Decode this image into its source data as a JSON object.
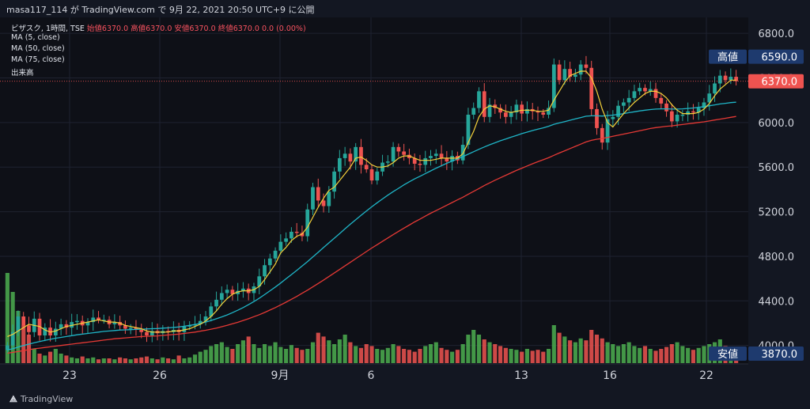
{
  "header": {
    "caption": "masa117_114 が TradingView.com で 9月 22, 2021 20:50 UTC+9 に公開"
  },
  "legend": {
    "symbol": "ビザスク, 1時間, TSE",
    "ohlc": "始値6370.0 高値6370.0 安値6370.0 終値6370.0 0.0 (0.00%)",
    "ma5": "MA (5, close)",
    "ma50": "MA (50, close)",
    "ma75": "MA (75, close)",
    "volume": "出来高"
  },
  "price_axis": {
    "ticks": [
      "6800.0",
      "6400.0",
      "6000.0",
      "5600.0",
      "5200.0",
      "4800.0",
      "4400.0",
      "4000.0"
    ],
    "high_label": "高値",
    "high_value": "6590.0",
    "last_value": "6370.0",
    "low_label": "安値",
    "low_value": "3870.0"
  },
  "time_axis": {
    "labels": [
      "23",
      "26",
      "9月",
      "6",
      "13",
      "16",
      "22"
    ]
  },
  "footer": {
    "brand": "TradingView"
  },
  "colors": {
    "up": "#26a69a",
    "down": "#ef5350",
    "ma5": "#f5d13a",
    "ma50": "#1fb5c7",
    "ma75": "#e53935",
    "vol_up": "#4caf50",
    "vol_down": "#ef5350",
    "bg": "#0e1017"
  },
  "chart_data": {
    "type": "candlestick",
    "ylim": [
      3870,
      6900
    ],
    "ticks": [
      6800,
      6400,
      6000,
      5600,
      5200,
      4800,
      4400,
      4000
    ],
    "close": [
      4000,
      4120,
      4260,
      4180,
      4120,
      4240,
      4090,
      4160,
      4090,
      4150,
      4190,
      4160,
      4210,
      4220,
      4180,
      4210,
      4250,
      4230,
      4230,
      4190,
      4210,
      4180,
      4150,
      4160,
      4140,
      4120,
      4090,
      4130,
      4110,
      4130,
      4120,
      4140,
      4120,
      4170,
      4180,
      4190,
      4220,
      4260,
      4350,
      4410,
      4470,
      4500,
      4460,
      4490,
      4510,
      4470,
      4530,
      4620,
      4720,
      4780,
      4850,
      4930,
      4960,
      5020,
      5010,
      4980,
      5220,
      5420,
      5300,
      5250,
      5380,
      5560,
      5680,
      5720,
      5650,
      5780,
      5620,
      5580,
      5480,
      5560,
      5640,
      5650,
      5780,
      5740,
      5710,
      5680,
      5630,
      5620,
      5680,
      5700,
      5720,
      5680,
      5650,
      5700,
      5660,
      5800,
      6070,
      6130,
      6280,
      6050,
      6160,
      6130,
      6090,
      6050,
      6090,
      6160,
      6080,
      6120,
      6100,
      6090,
      6070,
      6130,
      6520,
      6380,
      6480,
      6410,
      6430,
      6520,
      6490,
      6120,
      5950,
      5820,
      6030,
      6050,
      6150,
      6180,
      6220,
      6280,
      6310,
      6280,
      6300,
      6220,
      6170,
      6100,
      6010,
      6070,
      6070,
      6100,
      6090,
      6130,
      6180,
      6260,
      6350,
      6420,
      6380,
      6410,
      6370
    ],
    "ma5": [
      4080,
      4100,
      4130,
      4160,
      4190,
      4180,
      4170,
      4140,
      4120,
      4130,
      4150,
      4170,
      4180,
      4190,
      4200,
      4210,
      4220,
      4230,
      4220,
      4210,
      4210,
      4200,
      4180,
      4170,
      4160,
      4150,
      4130,
      4120,
      4120,
      4120,
      4120,
      4130,
      4130,
      4140,
      4150,
      4170,
      4190,
      4220,
      4260,
      4310,
      4370,
      4420,
      4460,
      4480,
      4490,
      4490,
      4500,
      4530,
      4590,
      4660,
      4730,
      4830,
      4880,
      4940,
      4980,
      5000,
      5060,
      5150,
      5240,
      5320,
      5390,
      5420,
      5480,
      5540,
      5600,
      5680,
      5690,
      5660,
      5620,
      5600,
      5600,
      5610,
      5640,
      5680,
      5700,
      5700,
      5680,
      5660,
      5660,
      5660,
      5670,
      5680,
      5680,
      5680,
      5680,
      5720,
      5820,
      5920,
      6050,
      6120,
      6150,
      6140,
      6120,
      6100,
      6090,
      6100,
      6110,
      6110,
      6110,
      6100,
      6100,
      6110,
      6200,
      6280,
      6360,
      6420,
      6440,
      6460,
      6460,
      6400,
      6280,
      6120,
      6000,
      5960,
      6020,
      6080,
      6130,
      6180,
      6220,
      6260,
      6280,
      6280,
      6260,
      6220,
      6160,
      6110,
      6080,
      6080,
      6080,
      6090,
      6120,
      6170,
      6240,
      6300,
      6340,
      6380,
      6380
    ],
    "ma50": [
      3960,
      3970,
      3985,
      4000,
      4012,
      4025,
      4035,
      4045,
      4055,
      4065,
      4072,
      4080,
      4088,
      4096,
      4102,
      4108,
      4114,
      4120,
      4126,
      4130,
      4134,
      4138,
      4140,
      4142,
      4144,
      4146,
      4148,
      4150,
      4152,
      4155,
      4158,
      4162,
      4166,
      4172,
      4180,
      4188,
      4198,
      4210,
      4224,
      4240,
      4256,
      4274,
      4294,
      4316,
      4340,
      4366,
      4394,
      4424,
      4456,
      4490,
      4524,
      4560,
      4598,
      4636,
      4674,
      4712,
      4752,
      4794,
      4836,
      4878,
      4920,
      4962,
      5004,
      5046,
      5088,
      5128,
      5168,
      5206,
      5244,
      5280,
      5314,
      5348,
      5380,
      5410,
      5440,
      5468,
      5494,
      5518,
      5542,
      5566,
      5590,
      5612,
      5634,
      5654,
      5674,
      5694,
      5716,
      5738,
      5760,
      5780,
      5800,
      5818,
      5836,
      5852,
      5868,
      5884,
      5900,
      5914,
      5928,
      5940,
      5952,
      5966,
      5984,
      5996,
      6008,
      6020,
      6032,
      6044,
      6056,
      6060,
      6060,
      6058,
      6062,
      6066,
      6072,
      6080,
      6088,
      6096,
      6104,
      6110,
      6116,
      6120,
      6122,
      6122,
      6120,
      6120,
      6122,
      6126,
      6130,
      6136,
      6142,
      6150,
      6158,
      6166,
      6172,
      6178,
      6182
    ],
    "ma75": [
      3930,
      3938,
      3946,
      3954,
      3962,
      3970,
      3976,
      3982,
      3988,
      3994,
      4000,
      4006,
      4012,
      4018,
      4024,
      4030,
      4036,
      4042,
      4048,
      4054,
      4060,
      4064,
      4068,
      4072,
      4076,
      4080,
      4082,
      4084,
      4086,
      4090,
      4094,
      4098,
      4102,
      4108,
      4114,
      4120,
      4128,
      4136,
      4146,
      4156,
      4168,
      4180,
      4194,
      4208,
      4224,
      4240,
      4258,
      4276,
      4296,
      4318,
      4340,
      4364,
      4388,
      4414,
      4440,
      4468,
      4496,
      4526,
      4556,
      4586,
      4618,
      4650,
      4682,
      4714,
      4746,
      4778,
      4810,
      4842,
      4874,
      4904,
      4934,
      4964,
      4994,
      5024,
      5052,
      5080,
      5108,
      5134,
      5160,
      5186,
      5210,
      5234,
      5258,
      5282,
      5306,
      5330,
      5356,
      5382,
      5408,
      5434,
      5458,
      5482,
      5504,
      5526,
      5548,
      5570,
      5590,
      5610,
      5630,
      5648,
      5666,
      5684,
      5706,
      5726,
      5746,
      5766,
      5786,
      5806,
      5826,
      5840,
      5850,
      5856,
      5866,
      5876,
      5886,
      5896,
      5906,
      5916,
      5926,
      5936,
      5946,
      5954,
      5960,
      5966,
      5970,
      5976,
      5982,
      5988,
      5994,
      6000,
      6006,
      6014,
      6022,
      6030,
      6038,
      6046,
      6054
    ],
    "volume_relative": [
      0.95,
      0.75,
      0.55,
      0.4,
      0.3,
      0.15,
      0.1,
      0.08,
      0.12,
      0.15,
      0.1,
      0.08,
      0.06,
      0.05,
      0.07,
      0.05,
      0.06,
      0.04,
      0.05,
      0.05,
      0.04,
      0.06,
      0.05,
      0.04,
      0.05,
      0.06,
      0.07,
      0.05,
      0.04,
      0.06,
      0.05,
      0.04,
      0.08,
      0.05,
      0.06,
      0.09,
      0.12,
      0.14,
      0.18,
      0.2,
      0.22,
      0.17,
      0.15,
      0.2,
      0.24,
      0.28,
      0.2,
      0.16,
      0.2,
      0.18,
      0.22,
      0.17,
      0.15,
      0.19,
      0.16,
      0.14,
      0.15,
      0.22,
      0.32,
      0.28,
      0.24,
      0.2,
      0.25,
      0.3,
      0.22,
      0.18,
      0.16,
      0.2,
      0.18,
      0.15,
      0.14,
      0.16,
      0.2,
      0.18,
      0.15,
      0.14,
      0.12,
      0.15,
      0.18,
      0.2,
      0.22,
      0.16,
      0.14,
      0.12,
      0.14,
      0.2,
      0.3,
      0.35,
      0.3,
      0.25,
      0.22,
      0.2,
      0.18,
      0.16,
      0.15,
      0.14,
      0.12,
      0.15,
      0.13,
      0.14,
      0.12,
      0.15,
      0.4,
      0.32,
      0.28,
      0.24,
      0.22,
      0.26,
      0.24,
      0.35,
      0.3,
      0.26,
      0.22,
      0.2,
      0.18,
      0.2,
      0.22,
      0.18,
      0.16,
      0.18,
      0.15,
      0.13,
      0.15,
      0.17,
      0.2,
      0.22,
      0.18,
      0.16,
      0.14,
      0.16,
      0.18,
      0.2,
      0.22,
      0.25,
      0.18,
      0.14,
      0.1
    ]
  }
}
